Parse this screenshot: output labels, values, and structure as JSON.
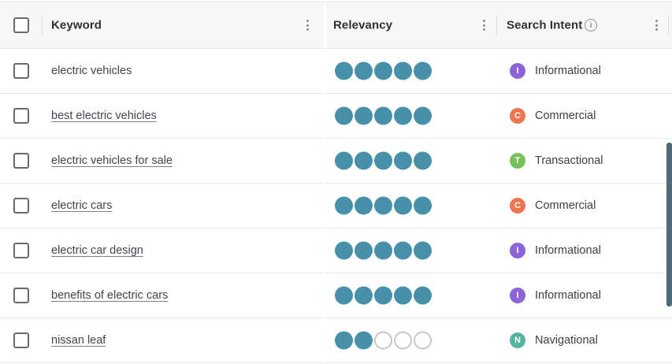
{
  "accent": {
    "relevancy_fill": "#4691a9",
    "relevancy_empty_ring": "#c6c6c6",
    "header_bg": "#f7f7f7",
    "scrollbar": "#4d6b77"
  },
  "table": {
    "columns": [
      {
        "label": "Keyword"
      },
      {
        "label": "Relevancy"
      },
      {
        "label": "Search Intent",
        "info_icon": "i"
      }
    ],
    "rows": [
      {
        "keyword": "electric vehicles",
        "link": false,
        "relevancy": {
          "filled": 5,
          "total": 5
        },
        "intent": {
          "code": "I",
          "label": "Informational",
          "color": "#8a64d8"
        }
      },
      {
        "keyword": "best electric vehicles",
        "link": true,
        "relevancy": {
          "filled": 5,
          "total": 5
        },
        "intent": {
          "code": "C",
          "label": "Commercial",
          "color": "#ef7552"
        }
      },
      {
        "keyword": "electric vehicles for sale",
        "link": true,
        "relevancy": {
          "filled": 5,
          "total": 5
        },
        "intent": {
          "code": "T",
          "label": "Transactional",
          "color": "#76c159"
        }
      },
      {
        "keyword": "electric cars",
        "link": true,
        "relevancy": {
          "filled": 5,
          "total": 5
        },
        "intent": {
          "code": "C",
          "label": "Commercial",
          "color": "#ef7552"
        }
      },
      {
        "keyword": "electric car design",
        "link": true,
        "relevancy": {
          "filled": 5,
          "total": 5
        },
        "intent": {
          "code": "I",
          "label": "Informational",
          "color": "#8a64d8"
        }
      },
      {
        "keyword": "benefits of electric cars",
        "link": true,
        "relevancy": {
          "filled": 5,
          "total": 5
        },
        "intent": {
          "code": "I",
          "label": "Informational",
          "color": "#8a64d8"
        }
      },
      {
        "keyword": "nissan leaf",
        "link": true,
        "relevancy": {
          "filled": 2,
          "total": 5
        },
        "intent": {
          "code": "N",
          "label": "Navigational",
          "color": "#55b3a1"
        }
      }
    ]
  }
}
